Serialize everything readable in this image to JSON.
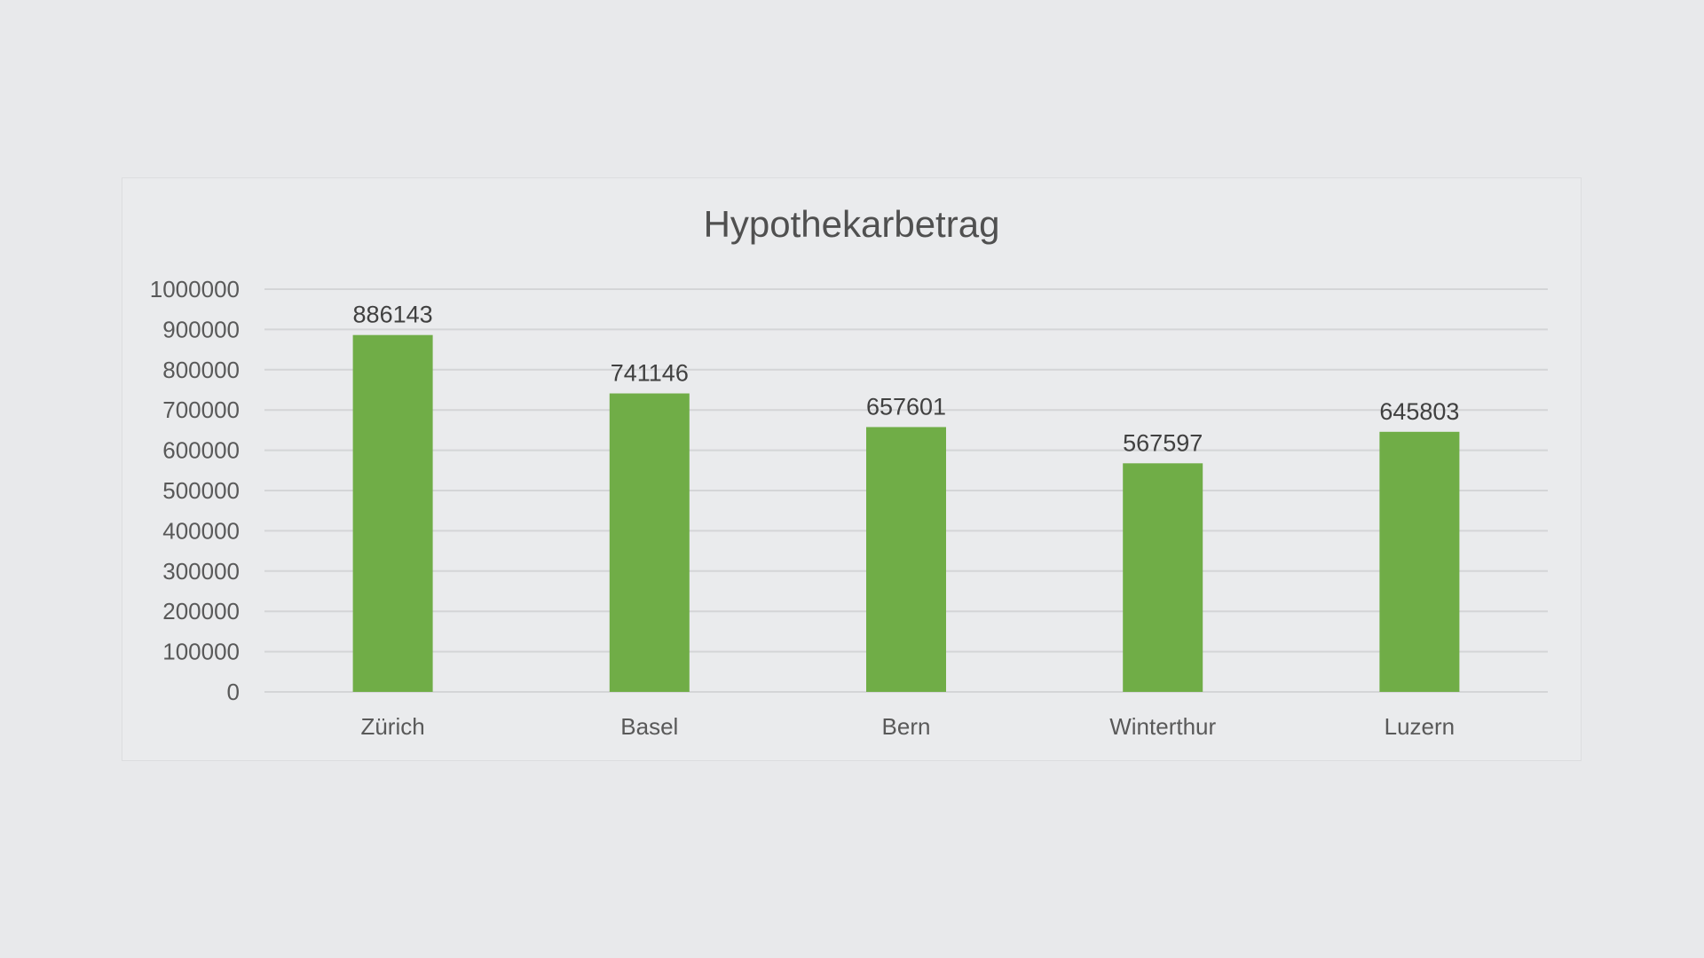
{
  "chart_data": {
    "type": "bar",
    "title": "Hypothekarbetrag",
    "xlabel": "",
    "ylabel": "",
    "categories": [
      "Zürich",
      "Basel",
      "Bern",
      "Winterthur",
      "Luzern"
    ],
    "values": [
      886143,
      741146,
      657601,
      567597,
      645803
    ],
    "data_labels": [
      "886143",
      "741146",
      "657601",
      "567597",
      "645803"
    ],
    "ylim": [
      0,
      1000000
    ],
    "yticks": [
      0,
      100000,
      200000,
      300000,
      400000,
      500000,
      600000,
      700000,
      800000,
      900000,
      1000000
    ],
    "ytick_labels": [
      "0",
      "100000",
      "200000",
      "300000",
      "400000",
      "500000",
      "600000",
      "700000",
      "800000",
      "900000",
      "1000000"
    ],
    "grid": true,
    "legend": "none",
    "bar_color": "#70ad47"
  }
}
